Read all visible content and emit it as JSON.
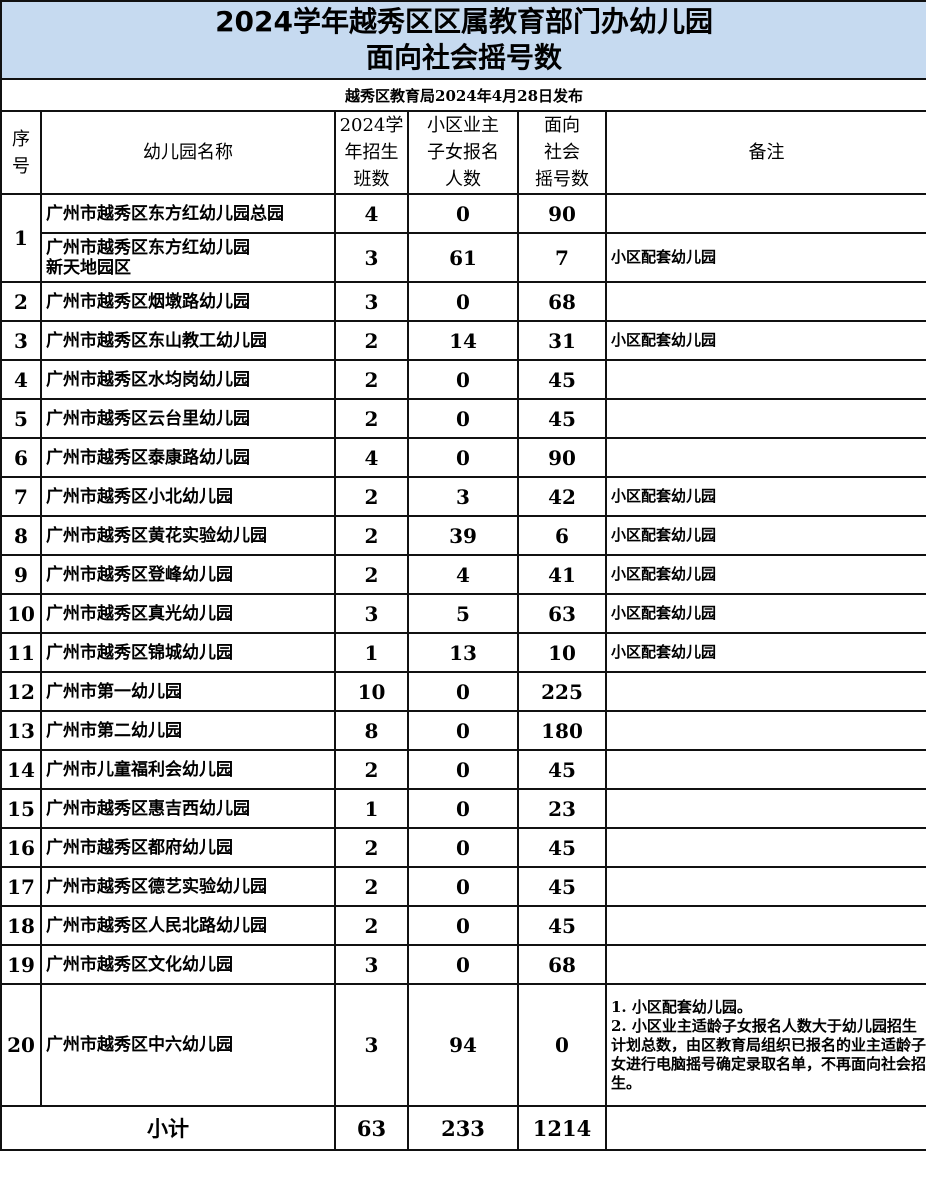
{
  "title_line1": "2024学年越秀区区属教育部门办幼儿园",
  "title_line2": "面向社会摇号数",
  "subtitle": "越秀区教育局2024年4月28日发布",
  "headers": {
    "seq": [
      "序",
      "号"
    ],
    "name": "幼儿园名称",
    "classes": [
      "2024学",
      "年招生",
      "班数"
    ],
    "owners": [
      "小区业主",
      "子女报名",
      "人数"
    ],
    "lottery": [
      "面向",
      "社会",
      "摇号数"
    ],
    "remarks": "备注"
  },
  "rows": [
    {
      "seq": "1",
      "name": "广州市越秀区东方红幼儿园总园",
      "classes": "4",
      "owners": "0",
      "lottery": "90",
      "remarks": ""
    },
    {
      "seq": "",
      "name": "广州市越秀区东方红幼儿园\n新天地园区",
      "classes": "3",
      "owners": "61",
      "lottery": "7",
      "remarks": "小区配套幼儿园"
    },
    {
      "seq": "2",
      "name": "广州市越秀区烟墩路幼儿园",
      "classes": "3",
      "owners": "0",
      "lottery": "68",
      "remarks": ""
    },
    {
      "seq": "3",
      "name": "广州市越秀区东山教工幼儿园",
      "classes": "2",
      "owners": "14",
      "lottery": "31",
      "remarks": "小区配套幼儿园"
    },
    {
      "seq": "4",
      "name": "广州市越秀区水均岗幼儿园",
      "classes": "2",
      "owners": "0",
      "lottery": "45",
      "remarks": ""
    },
    {
      "seq": "5",
      "name": "广州市越秀区云台里幼儿园",
      "classes": "2",
      "owners": "0",
      "lottery": "45",
      "remarks": ""
    },
    {
      "seq": "6",
      "name": "广州市越秀区泰康路幼儿园",
      "classes": "4",
      "owners": "0",
      "lottery": "90",
      "remarks": ""
    },
    {
      "seq": "7",
      "name": "广州市越秀区小北幼儿园",
      "classes": "2",
      "owners": "3",
      "lottery": "42",
      "remarks": "小区配套幼儿园"
    },
    {
      "seq": "8",
      "name": "广州市越秀区黄花实验幼儿园",
      "classes": "2",
      "owners": "39",
      "lottery": "6",
      "remarks": "小区配套幼儿园"
    },
    {
      "seq": "9",
      "name": "广州市越秀区登峰幼儿园",
      "classes": "2",
      "owners": "4",
      "lottery": "41",
      "remarks": "小区配套幼儿园"
    },
    {
      "seq": "10",
      "name": "广州市越秀区真光幼儿园",
      "classes": "3",
      "owners": "5",
      "lottery": "63",
      "remarks": "小区配套幼儿园"
    },
    {
      "seq": "11",
      "name": "广州市越秀区锦城幼儿园",
      "classes": "1",
      "owners": "13",
      "lottery": "10",
      "remarks": "小区配套幼儿园"
    },
    {
      "seq": "12",
      "name": "广州市第一幼儿园",
      "classes": "10",
      "owners": "0",
      "lottery": "225",
      "remarks": ""
    },
    {
      "seq": "13",
      "name": "广州市第二幼儿园",
      "classes": "8",
      "owners": "0",
      "lottery": "180",
      "remarks": ""
    },
    {
      "seq": "14",
      "name": "广州市儿童福利会幼儿园",
      "classes": "2",
      "owners": "0",
      "lottery": "45",
      "remarks": ""
    },
    {
      "seq": "15",
      "name": "广州市越秀区惠吉西幼儿园",
      "classes": "1",
      "owners": "0",
      "lottery": "23",
      "remarks": ""
    },
    {
      "seq": "16",
      "name": "广州市越秀区都府幼儿园",
      "classes": "2",
      "owners": "0",
      "lottery": "45",
      "remarks": ""
    },
    {
      "seq": "17",
      "name": "广州市越秀区德艺实验幼儿园",
      "classes": "2",
      "owners": "0",
      "lottery": "45",
      "remarks": ""
    },
    {
      "seq": "18",
      "name": "广州市越秀区人民北路幼儿园",
      "classes": "2",
      "owners": "0",
      "lottery": "45",
      "remarks": ""
    },
    {
      "seq": "19",
      "name": "广州市越秀区文化幼儿园",
      "classes": "3",
      "owners": "0",
      "lottery": "68",
      "remarks": ""
    },
    {
      "seq": "20",
      "name": "广州市越秀区中六幼儿园",
      "classes": "3",
      "owners": "94",
      "lottery": "0",
      "remarks": "1. 小区配套幼儿园。\n2. 小区业主适龄子女报名人数大于幼儿园招生计划总数，由区教育局组织已报名的业主适龄子女进行电脑摇号确定录取名单，不再面向社会招生。"
    }
  ],
  "total": {
    "label": "小计",
    "classes": "63",
    "owners": "233",
    "lottery": "1214",
    "remarks": ""
  }
}
